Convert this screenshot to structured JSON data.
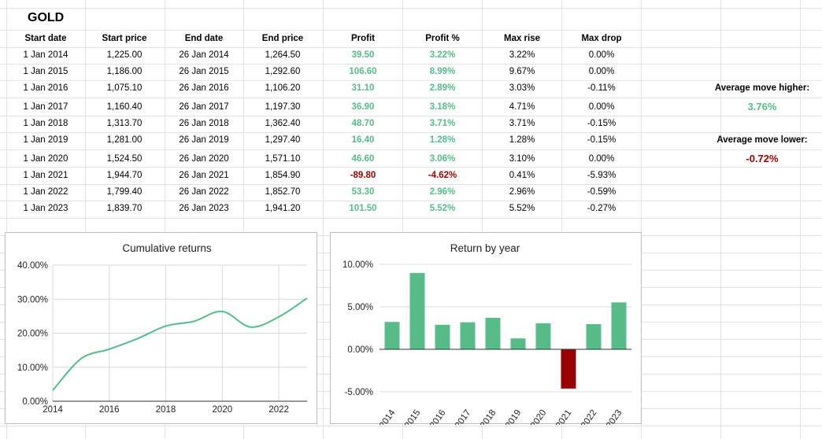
{
  "sheet": {
    "title": "GOLD",
    "headers": [
      "Start date",
      "Start price",
      "End date",
      "End price",
      "Profit",
      "Profit %",
      "Max rise",
      "Max drop"
    ],
    "rows": [
      {
        "start_date": "1 Jan 2014",
        "start_price": "1,225.00",
        "end_date": "26 Jan 2014",
        "end_price": "1,264.50",
        "profit": "39.50",
        "profit_pct": "3.22%",
        "max_rise": "3.22%",
        "max_drop": "0.00%",
        "positive": true
      },
      {
        "start_date": "1 Jan 2015",
        "start_price": "1,186.00",
        "end_date": "26 Jan 2015",
        "end_price": "1,292.60",
        "profit": "106.60",
        "profit_pct": "8.99%",
        "max_rise": "9.67%",
        "max_drop": "0.00%",
        "positive": true
      },
      {
        "start_date": "1 Jan 2016",
        "start_price": "1,075.10",
        "end_date": "26 Jan 2016",
        "end_price": "1,106.20",
        "profit": "31.10",
        "profit_pct": "2.89%",
        "max_rise": "3.03%",
        "max_drop": "-0.11%",
        "positive": true
      },
      {
        "start_date": "1 Jan 2017",
        "start_price": "1,160.40",
        "end_date": "26 Jan 2017",
        "end_price": "1,197.30",
        "profit": "36.90",
        "profit_pct": "3.18%",
        "max_rise": "4.71%",
        "max_drop": "0.00%",
        "positive": true
      },
      {
        "start_date": "1 Jan 2018",
        "start_price": "1,313.70",
        "end_date": "26 Jan 2018",
        "end_price": "1,362.40",
        "profit": "48.70",
        "profit_pct": "3.71%",
        "max_rise": "3.71%",
        "max_drop": "-0.15%",
        "positive": true
      },
      {
        "start_date": "1 Jan 2019",
        "start_price": "1,281.00",
        "end_date": "26 Jan 2019",
        "end_price": "1,297.40",
        "profit": "16.40",
        "profit_pct": "1.28%",
        "max_rise": "1.28%",
        "max_drop": "-0.15%",
        "positive": true
      },
      {
        "start_date": "1 Jan 2020",
        "start_price": "1,524.50",
        "end_date": "26 Jan 2020",
        "end_price": "1,571.10",
        "profit": "46.60",
        "profit_pct": "3.06%",
        "max_rise": "3.10%",
        "max_drop": "0.00%",
        "positive": true
      },
      {
        "start_date": "1 Jan 2021",
        "start_price": "1,944.70",
        "end_date": "26 Jan 2021",
        "end_price": "1,854.90",
        "profit": "-89.80",
        "profit_pct": "-4.62%",
        "max_rise": "0.41%",
        "max_drop": "-5.93%",
        "positive": false
      },
      {
        "start_date": "1 Jan 2022",
        "start_price": "1,799.40",
        "end_date": "26 Jan 2022",
        "end_price": "1,852.70",
        "profit": "53.30",
        "profit_pct": "2.96%",
        "max_rise": "2.96%",
        "max_drop": "-0.59%",
        "positive": true
      },
      {
        "start_date": "1 Jan 2023",
        "start_price": "1,839.70",
        "end_date": "26 Jan 2023",
        "end_price": "1,941.20",
        "profit": "101.50",
        "profit_pct": "5.52%",
        "max_rise": "5.52%",
        "max_drop": "-0.27%",
        "positive": true
      }
    ],
    "summary": {
      "higher_label": "Average move higher:",
      "higher_value": "3.76%",
      "lower_label": "Average move lower:",
      "lower_value": "-0.72%"
    }
  },
  "colors": {
    "positive": "#57bb8a",
    "negative": "#990000",
    "line": "#57bb8a"
  },
  "chart_data": [
    {
      "type": "line",
      "title": "Cumulative returns",
      "x": [
        2014,
        2015,
        2016,
        2017,
        2018,
        2019,
        2020,
        2021,
        2022,
        2023
      ],
      "series": [
        {
          "values": [
            3.2,
            12.5,
            15.3,
            18.4,
            22.1,
            23.5,
            26.4,
            21.8,
            24.8,
            30.3
          ]
        }
      ],
      "xticks": [
        "2014",
        "2016",
        "2018",
        "2020",
        "2022"
      ],
      "yticks": [
        "0.00%",
        "10.00%",
        "20.00%",
        "30.00%",
        "40.00%"
      ],
      "ylim": [
        0,
        40
      ],
      "xlim": [
        2014,
        2023
      ],
      "grid": true
    },
    {
      "type": "bar",
      "title": "Return by year",
      "categories": [
        "2014",
        "2015",
        "2016",
        "2017",
        "2018",
        "2019",
        "2020",
        "2021",
        "2022",
        "2023"
      ],
      "values": [
        3.22,
        8.99,
        2.89,
        3.18,
        3.71,
        1.28,
        3.06,
        -4.62,
        2.96,
        5.52
      ],
      "yticks": [
        "-5.00%",
        "0.00%",
        "5.00%",
        "10.00%"
      ],
      "ylim": [
        -5,
        10
      ],
      "grid": true
    }
  ]
}
